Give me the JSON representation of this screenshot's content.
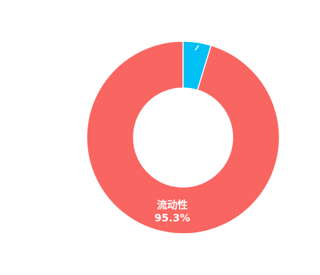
{
  "chart_data": {
    "type": "pie",
    "variant": "donut",
    "title": "",
    "legend": "none",
    "slices": [
      {
        "label": "",
        "value": 4.7,
        "color": "#00c0f5",
        "show_label": false
      },
      {
        "label": "流动性",
        "value": 95.3,
        "display_value": "95.3%",
        "color": "#f96560",
        "show_label": true
      }
    ]
  }
}
